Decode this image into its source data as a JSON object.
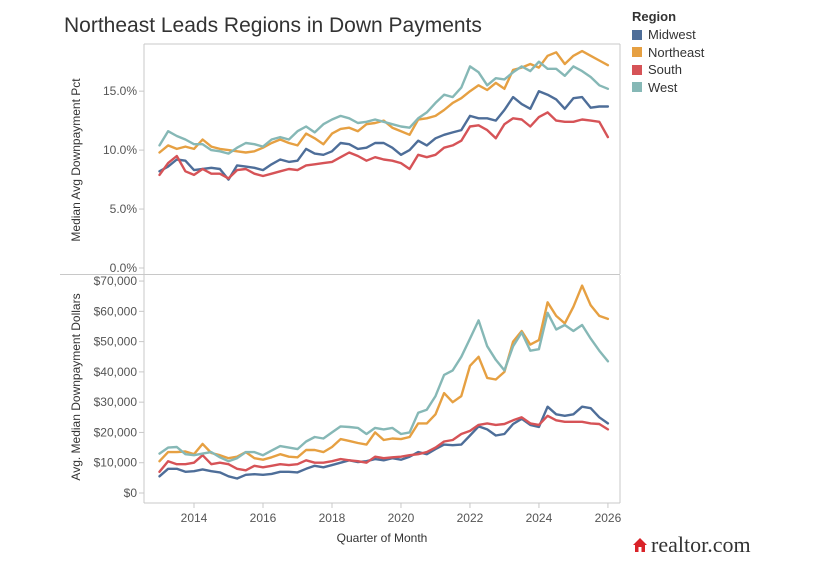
{
  "title": "Northeast Leads Regions in Down Payments",
  "legend": {
    "title": "Region",
    "items": [
      {
        "label": "Midwest",
        "color": "#4e6e99"
      },
      {
        "label": "Northeast",
        "color": "#e6a042"
      },
      {
        "label": "South",
        "color": "#d65357"
      },
      {
        "label": "West",
        "color": "#86b8b6"
      }
    ]
  },
  "brand": "realtor.com",
  "chart_data": [
    {
      "type": "line",
      "ylabel": "Median Avg Downpayment Pct",
      "ylim": [
        0,
        19.0
      ],
      "yticks": [
        0,
        5,
        10,
        15
      ],
      "ytick_labels": [
        "0.0%",
        "5.0%",
        "10.0%",
        "15.0%"
      ],
      "grid": false,
      "legend": "top-right",
      "x": [
        2013.0,
        2013.25,
        2013.5,
        2013.75,
        2014.0,
        2014.25,
        2014.5,
        2014.75,
        2015.0,
        2015.25,
        2015.5,
        2015.75,
        2016.0,
        2016.25,
        2016.5,
        2016.75,
        2017.0,
        2017.25,
        2017.5,
        2017.75,
        2018.0,
        2018.25,
        2018.5,
        2018.75,
        2019.0,
        2019.25,
        2019.5,
        2019.75,
        2020.0,
        2020.25,
        2020.5,
        2020.75,
        2021.0,
        2021.25,
        2021.5,
        2021.75,
        2022.0,
        2022.25,
        2022.5,
        2022.75,
        2023.0,
        2023.25,
        2023.5,
        2023.75,
        2024.0,
        2024.25,
        2024.5,
        2024.75,
        2025.0,
        2025.25,
        2025.5,
        2025.75,
        2026.0
      ],
      "series": [
        {
          "name": "Midwest",
          "color": "#4e6e99",
          "values": [
            8.2,
            8.6,
            9.2,
            9.1,
            8.3,
            8.4,
            8.5,
            8.4,
            7.5,
            8.7,
            8.6,
            8.5,
            8.3,
            8.8,
            9.2,
            9.0,
            9.1,
            10.1,
            9.7,
            9.6,
            9.9,
            10.6,
            10.5,
            10.1,
            10.2,
            10.6,
            10.6,
            10.2,
            9.6,
            10.0,
            10.8,
            10.4,
            11.0,
            11.3,
            11.5,
            11.7,
            12.9,
            12.7,
            12.7,
            12.5,
            13.4,
            14.5,
            13.9,
            13.5,
            15.0,
            14.7,
            14.3,
            13.5,
            14.4,
            14.5,
            13.6,
            13.7,
            13.7
          ]
        },
        {
          "name": "Northeast",
          "color": "#e6a042",
          "values": [
            9.8,
            10.4,
            10.1,
            10.3,
            10.1,
            10.9,
            10.3,
            10.1,
            10.0,
            9.9,
            9.8,
            9.9,
            10.2,
            10.6,
            10.9,
            10.6,
            10.4,
            11.4,
            11.0,
            10.5,
            11.4,
            11.8,
            11.9,
            11.6,
            12.2,
            12.3,
            12.5,
            11.9,
            11.6,
            11.3,
            12.6,
            12.7,
            12.9,
            13.4,
            14.0,
            14.4,
            15.0,
            15.5,
            15.1,
            15.7,
            15.2,
            16.8,
            17.0,
            17.3,
            17.0,
            18.0,
            18.3,
            17.3,
            18.0,
            18.4,
            18.0,
            17.6,
            17.2
          ]
        },
        {
          "name": "South",
          "color": "#d65357",
          "values": [
            7.9,
            8.9,
            9.5,
            8.2,
            7.9,
            8.4,
            8.0,
            8.0,
            7.6,
            8.3,
            8.4,
            8.0,
            7.8,
            8.0,
            8.2,
            8.4,
            8.3,
            8.7,
            8.8,
            8.9,
            9.0,
            9.4,
            9.8,
            9.5,
            9.1,
            9.4,
            9.2,
            9.1,
            8.9,
            8.4,
            9.6,
            9.4,
            9.6,
            10.2,
            10.4,
            10.8,
            12.0,
            12.1,
            11.7,
            11.0,
            12.2,
            12.7,
            12.6,
            12.0,
            12.8,
            13.2,
            12.5,
            12.4,
            12.4,
            12.6,
            12.5,
            12.4,
            11.1
          ]
        },
        {
          "name": "West",
          "color": "#86b8b6",
          "values": [
            10.4,
            11.6,
            11.2,
            10.9,
            10.5,
            10.5,
            10.0,
            9.9,
            9.7,
            10.2,
            10.6,
            10.5,
            10.3,
            10.9,
            11.1,
            10.9,
            11.6,
            12.0,
            11.5,
            12.2,
            12.6,
            12.9,
            12.7,
            12.3,
            12.4,
            12.6,
            12.4,
            12.2,
            12.0,
            11.9,
            12.7,
            13.2,
            14.0,
            14.7,
            14.5,
            15.3,
            17.1,
            16.6,
            15.5,
            16.1,
            16.0,
            16.6,
            17.1,
            16.7,
            17.5,
            16.9,
            16.9,
            16.3,
            17.1,
            16.7,
            16.2,
            15.5,
            15.2
          ]
        }
      ]
    },
    {
      "type": "line",
      "ylabel": "Avg. Median Downpayment Dollars",
      "xlabel": "Quarter of Month",
      "ylim": [
        0,
        72000
      ],
      "yticks": [
        0,
        10000,
        20000,
        30000,
        40000,
        50000,
        60000,
        70000
      ],
      "ytick_labels": [
        "$0",
        "$10,000",
        "$20,000",
        "$30,000",
        "$40,000",
        "$50,000",
        "$60,000",
        "$70,000"
      ],
      "xticks": [
        2014,
        2016,
        2018,
        2020,
        2022,
        2024,
        2026
      ],
      "xtick_labels": [
        "2014",
        "2016",
        "2018",
        "2020",
        "2022",
        "2024",
        "2026"
      ],
      "grid": false,
      "x": [
        2013.0,
        2013.25,
        2013.5,
        2013.75,
        2014.0,
        2014.25,
        2014.5,
        2014.75,
        2015.0,
        2015.25,
        2015.5,
        2015.75,
        2016.0,
        2016.25,
        2016.5,
        2016.75,
        2017.0,
        2017.25,
        2017.5,
        2017.75,
        2018.0,
        2018.25,
        2018.5,
        2018.75,
        2019.0,
        2019.25,
        2019.5,
        2019.75,
        2020.0,
        2020.25,
        2020.5,
        2020.75,
        2021.0,
        2021.25,
        2021.5,
        2021.75,
        2022.0,
        2022.25,
        2022.5,
        2022.75,
        2023.0,
        2023.25,
        2023.5,
        2023.75,
        2024.0,
        2024.25,
        2024.5,
        2024.75,
        2025.0,
        2025.25,
        2025.5,
        2025.75,
        2026.0
      ],
      "series": [
        {
          "name": "Midwest",
          "color": "#4e6e99",
          "values": [
            5500,
            8000,
            8000,
            7000,
            7200,
            7800,
            7200,
            6800,
            5500,
            4800,
            6000,
            6200,
            6000,
            6300,
            7000,
            7000,
            6800,
            8000,
            9000,
            8500,
            9200,
            10000,
            10800,
            10200,
            10500,
            11200,
            10800,
            11500,
            11000,
            12000,
            13500,
            12800,
            14500,
            16000,
            15800,
            16000,
            19000,
            22000,
            21000,
            19000,
            19500,
            22800,
            24500,
            22500,
            21800,
            28500,
            26000,
            25500,
            26000,
            28500,
            28000,
            25000,
            23000
          ]
        },
        {
          "name": "Northeast",
          "color": "#e6a042",
          "values": [
            10500,
            13500,
            13500,
            13700,
            12800,
            16200,
            13200,
            12500,
            11500,
            12000,
            13500,
            11500,
            11000,
            11800,
            12800,
            12000,
            11800,
            14200,
            14200,
            13500,
            15200,
            17800,
            17200,
            16500,
            16000,
            20000,
            17500,
            18000,
            17800,
            18500,
            23000,
            23000,
            26000,
            33000,
            30000,
            32000,
            42000,
            45000,
            38000,
            37500,
            40000,
            50000,
            53500,
            49000,
            50500,
            63000,
            58500,
            56000,
            61500,
            68500,
            62000,
            58500,
            57500
          ]
        },
        {
          "name": "South",
          "color": "#d65357",
          "values": [
            7000,
            10500,
            9500,
            9500,
            10000,
            12500,
            9500,
            10000,
            9500,
            8000,
            7500,
            9000,
            8500,
            9000,
            9500,
            9200,
            9500,
            10800,
            10000,
            10000,
            10500,
            11200,
            10800,
            10500,
            10000,
            12000,
            11500,
            11800,
            12000,
            12500,
            12800,
            13500,
            15000,
            17000,
            17500,
            19500,
            20500,
            22500,
            23000,
            22500,
            22800,
            24000,
            25000,
            23000,
            22500,
            25500,
            24000,
            23500,
            23500,
            23500,
            23000,
            22800,
            21000
          ]
        },
        {
          "name": "West",
          "color": "#86b8b6",
          "values": [
            13000,
            15000,
            15200,
            12800,
            12500,
            13000,
            13500,
            11800,
            10500,
            11500,
            13500,
            13500,
            12500,
            14000,
            15500,
            15000,
            14500,
            17000,
            18500,
            18000,
            20000,
            22000,
            21800,
            21500,
            19500,
            21500,
            21000,
            21500,
            19500,
            20000,
            26500,
            27500,
            32000,
            39000,
            40500,
            45000,
            51000,
            57000,
            48500,
            44000,
            40500,
            48500,
            53000,
            47000,
            47500,
            59500,
            54000,
            55500,
            53500,
            55500,
            51000,
            47000,
            43500
          ]
        }
      ]
    }
  ]
}
